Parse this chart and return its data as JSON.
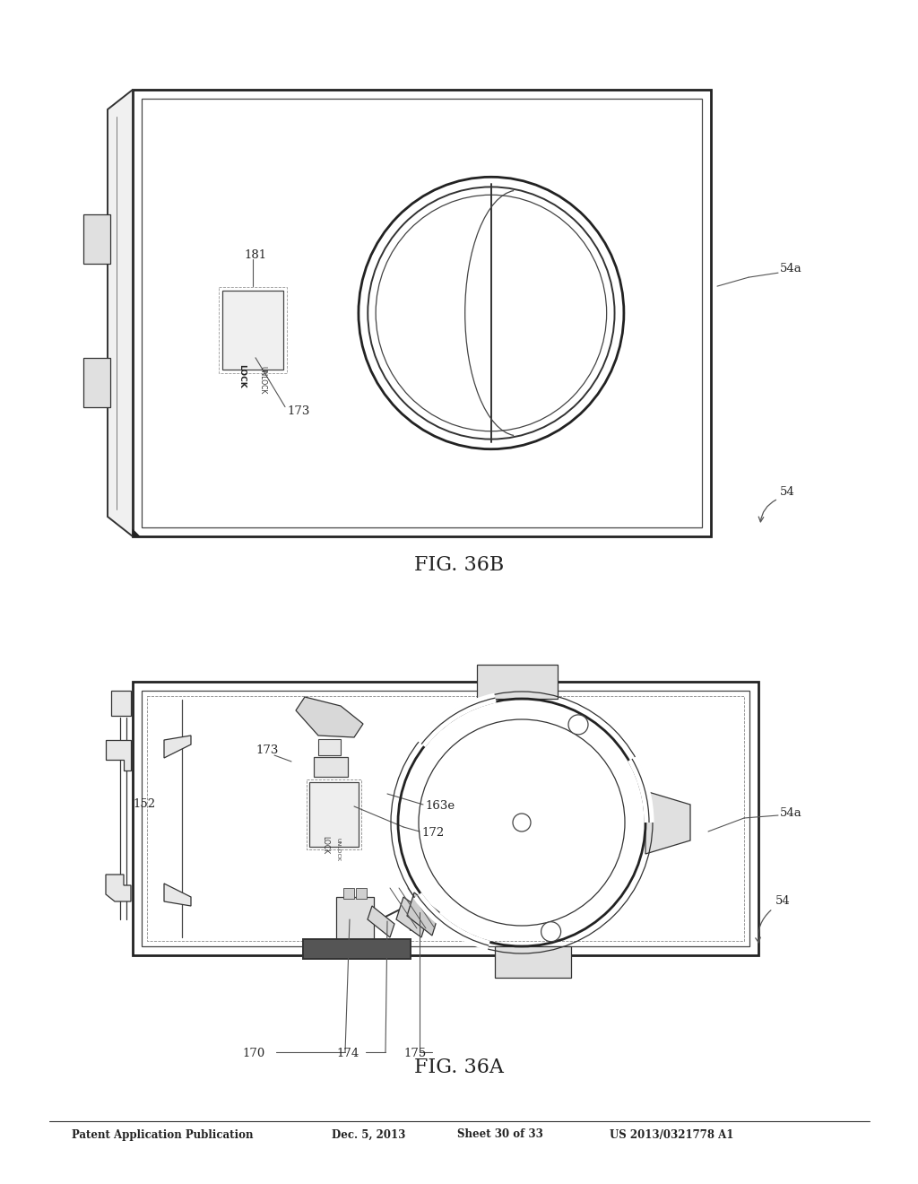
{
  "bg_color": "#ffffff",
  "line_color": "#333333",
  "header_text": "Patent Application Publication",
  "header_date": "Dec. 5, 2013",
  "header_sheet": "Sheet 30 of 33",
  "header_patent": "US 2013/0321778 A1",
  "fig_a_title": "FIG. 36A",
  "fig_b_title": "FIG. 36B"
}
